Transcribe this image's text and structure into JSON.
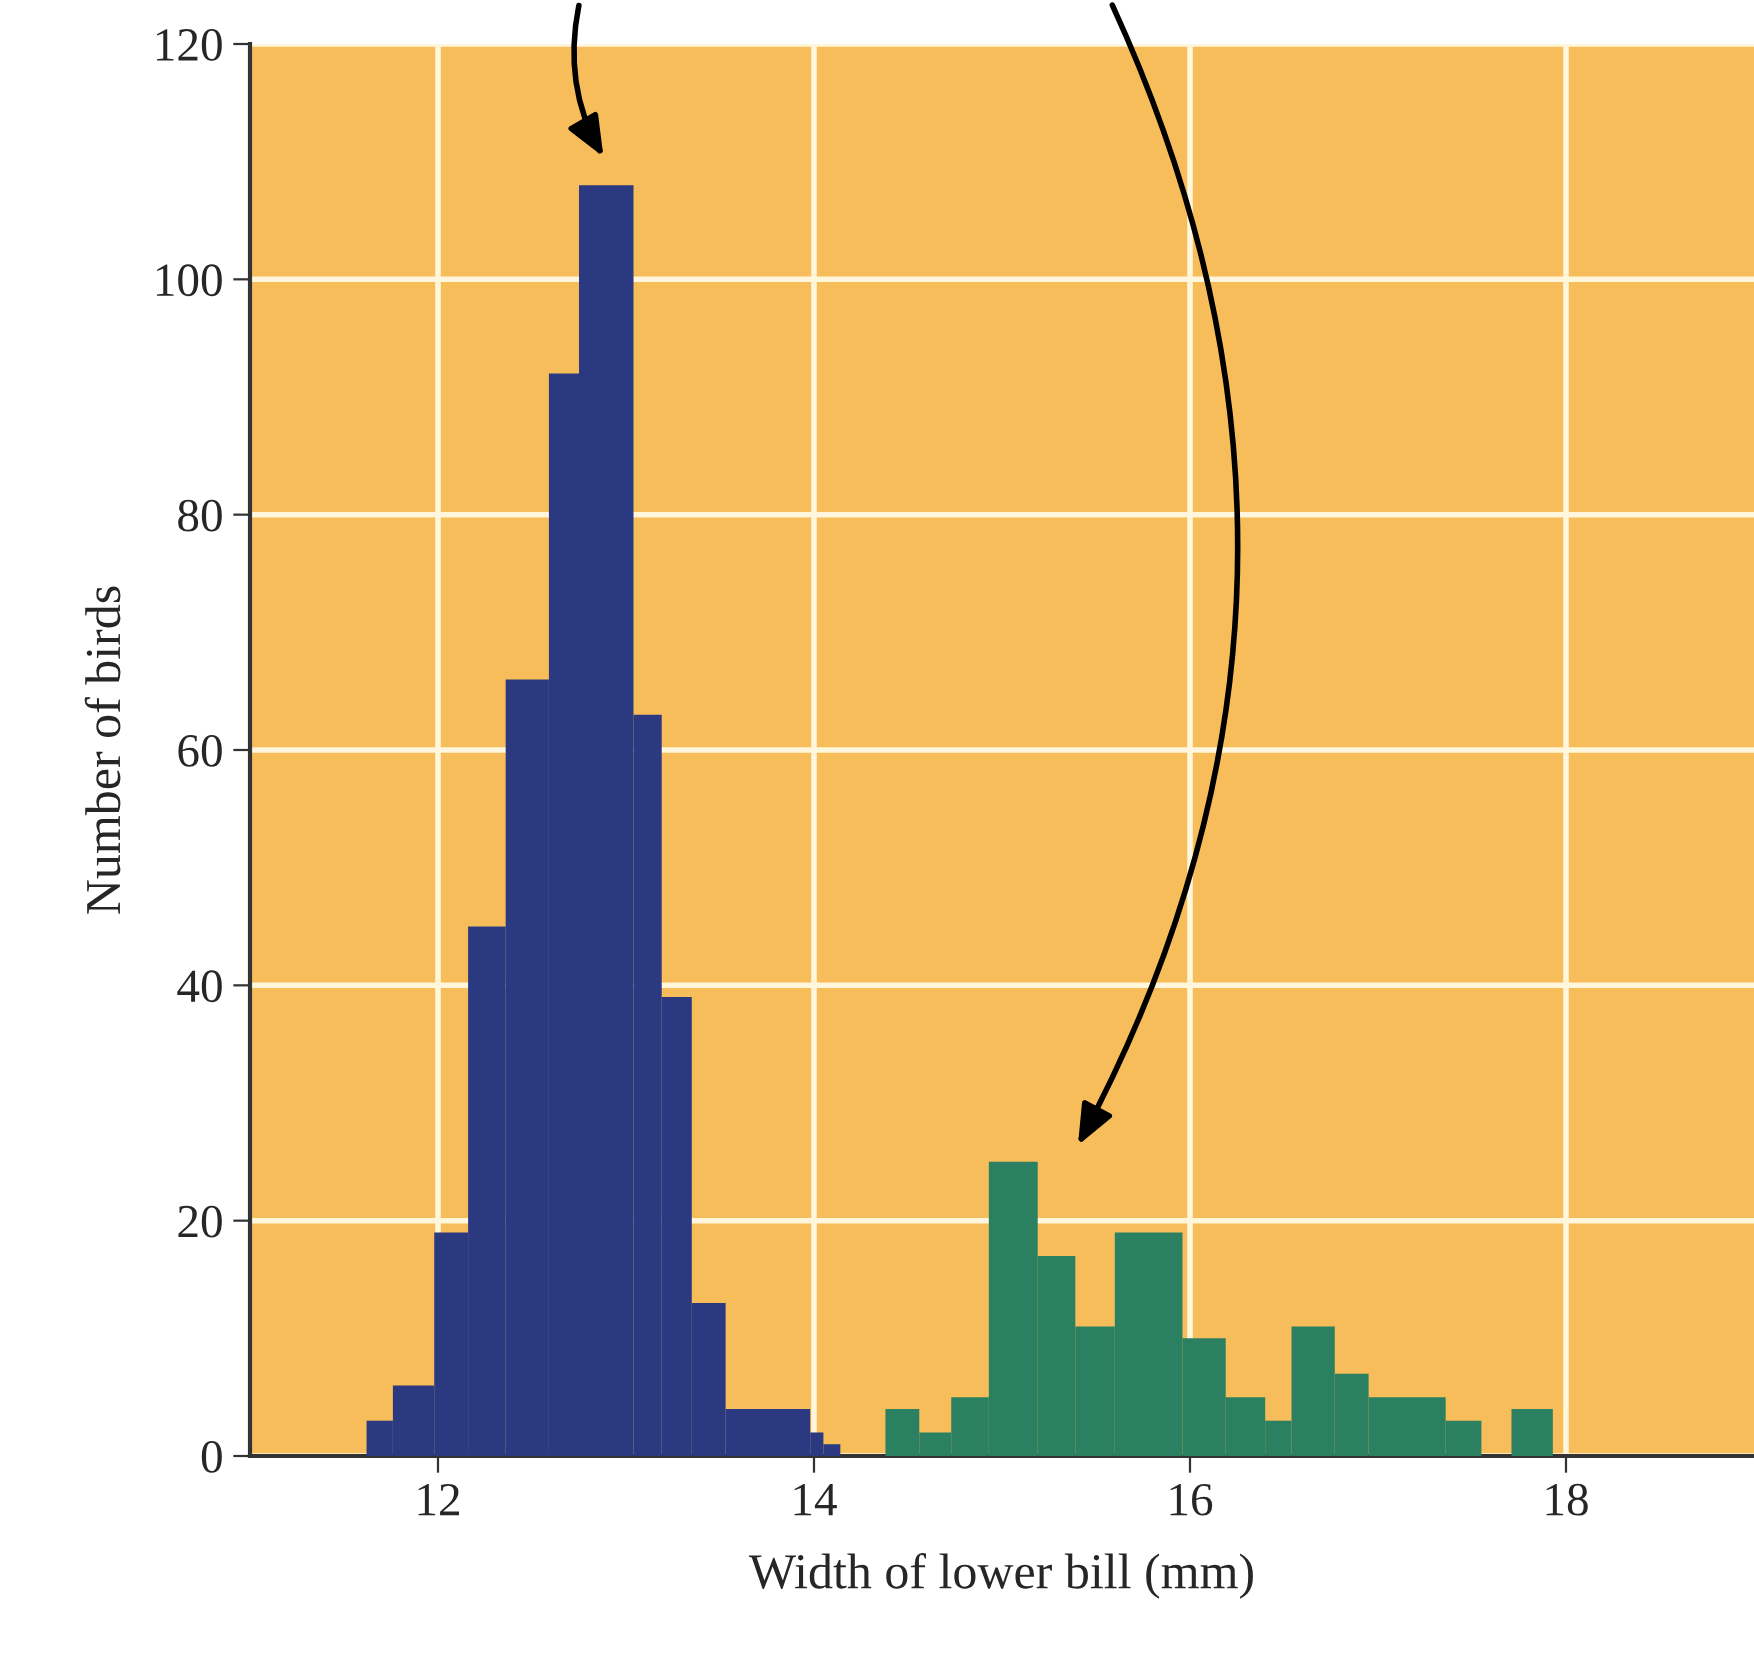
{
  "chart_data": {
    "type": "histogram",
    "xlabel": "Width of lower bill (mm)",
    "ylabel": "Number of birds",
    "bins": [
      11.62,
      11.76,
      11.98,
      12.16,
      12.36,
      12.59,
      12.75,
      13.04,
      13.19,
      13.35,
      13.53,
      13.98,
      14.05,
      14.14,
      14.38,
      14.56,
      14.73,
      14.93,
      15.19,
      15.39,
      15.6,
      15.96,
      16.19,
      16.4,
      16.54,
      16.77,
      16.95,
      17.36,
      17.55,
      17.71,
      17.93
    ],
    "values": [
      3,
      6,
      19,
      45,
      66,
      92,
      108,
      63,
      39,
      13,
      4,
      2,
      1,
      0,
      4,
      2,
      5,
      25,
      17,
      11,
      19,
      10,
      5,
      3,
      11,
      7,
      5,
      3,
      0,
      4
    ],
    "colors": [
      "#2b3a80",
      "#2b3a80",
      "#2b3a80",
      "#2b3a80",
      "#2b3a80",
      "#2b3a80",
      "#2b3a80",
      "#2b3a80",
      "#2b3a80",
      "#2b3a80",
      "#2b3a80",
      "#2b3a80",
      "#2b3a80",
      "#2b3a80",
      "#2a8060",
      "#2a8060",
      "#2a8060",
      "#2a8060",
      "#2a8060",
      "#2a8060",
      "#2a8060",
      "#2a8060",
      "#2a8060",
      "#2a8060",
      "#2a8060",
      "#2a8060",
      "#2a8060",
      "#2a8060",
      "#2a8060",
      "#2a8060"
    ],
    "xlim": [
      11.0,
      19.0
    ],
    "ylim": [
      0,
      120
    ],
    "xticks": [
      12,
      14,
      16,
      18
    ],
    "yticks": [
      0,
      20,
      40,
      60,
      80,
      100,
      120
    ],
    "grid": true
  }
}
